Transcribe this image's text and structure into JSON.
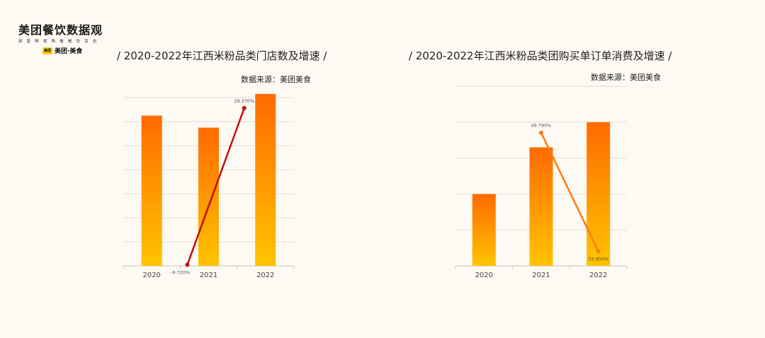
{
  "logo": {
    "title": "美团餐饮数据观",
    "subtitle": "用 普 鲜 视 角 看 餐 饮 百 态",
    "badge": "美团",
    "brand": "美团·美食"
  },
  "colors": {
    "bar_top": "#ff6a00",
    "bar_bottom": "#ffc400",
    "line1": "#c0100f",
    "line2": "#ff7a10",
    "grid": "#e2ddd6",
    "background": "#fdf9f3"
  },
  "chart_data": [
    {
      "type": "bar",
      "title": "/ 2020-2022年江西米粉品类门店数及增速 /",
      "source": "数据来源：美团美食",
      "categories": [
        "2020",
        "2021",
        "2022"
      ],
      "series": [
        {
          "type": "bar",
          "values": [
            62.5,
            57.5,
            71.5
          ]
        },
        {
          "type": "line",
          "values": [
            null,
            -9.72,
            29.37
          ],
          "labels": [
            "",
            "-9.720%",
            "29.370%"
          ]
        }
      ],
      "ylim": [
        0,
        70
      ],
      "y2lim": [
        -10,
        32
      ],
      "grid": true
    },
    {
      "type": "bar",
      "title": "/ 2020-2022年江西米粉品类团购买单订单消费及增速 /",
      "source": "数据来源：美团美食",
      "categories": [
        "2020",
        "2021",
        "2022"
      ],
      "series": [
        {
          "type": "bar",
          "values": [
            40,
            66,
            80
          ]
        },
        {
          "type": "line",
          "values": [
            null,
            49.79,
            33.95
          ],
          "labels": [
            "",
            "49.790%",
            "33.950%"
          ]
        }
      ],
      "ylim": [
        0,
        100
      ],
      "y2lim": [
        32,
        56
      ],
      "grid": true
    }
  ]
}
